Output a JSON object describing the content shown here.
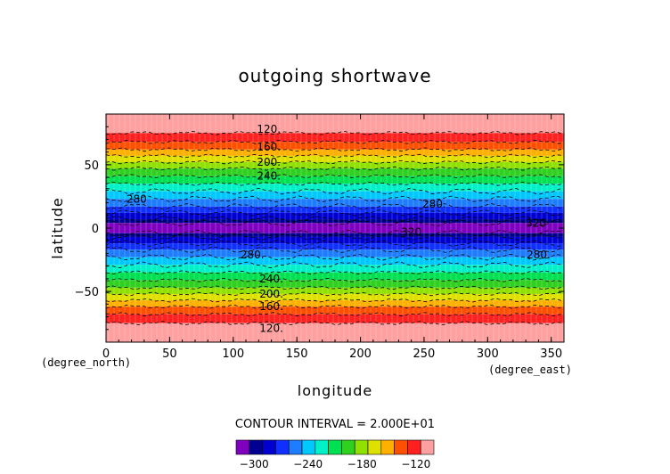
{
  "chart_data": {
    "type": "heatmap",
    "title": "outgoing shortwave",
    "xlabel": "longitude",
    "ylabel": "latitude",
    "x_unit_label": "(degree_east)",
    "y_unit_label": "(degree_north)",
    "xlim": [
      0,
      360
    ],
    "ylim": [
      -90,
      90
    ],
    "x_ticks": [
      0,
      50,
      100,
      150,
      200,
      250,
      300,
      350
    ],
    "y_ticks": [
      -50,
      0,
      50
    ],
    "y_tick_labels": [
      "−50",
      "0",
      "50"
    ],
    "contour_interval_text": "CONTOUR INTERVAL = 2.000E+01",
    "colorbar": {
      "colors": [
        "#8000c0",
        "#000090",
        "#0000d0",
        "#1030ff",
        "#1e7cff",
        "#00c8ff",
        "#00f0c8",
        "#00e050",
        "#30d020",
        "#90e000",
        "#e0e000",
        "#ffb000",
        "#ff5000",
        "#ff2020",
        "#ffa0a0"
      ],
      "tick_values": [
        -300,
        -240,
        -180,
        -120
      ],
      "tick_labels": [
        "−300",
        "−240",
        "−180",
        "−120"
      ]
    },
    "bands": [
      {
        "from": 75,
        "to": 90,
        "color": "#ffa0a0"
      },
      {
        "from": 68,
        "to": 75,
        "color": "#ff2020"
      },
      {
        "from": 62,
        "to": 68,
        "color": "#ff5000"
      },
      {
        "from": 57,
        "to": 62,
        "color": "#ffb000"
      },
      {
        "from": 52,
        "to": 57,
        "color": "#e0e000"
      },
      {
        "from": 47,
        "to": 52,
        "color": "#90e000"
      },
      {
        "from": 41,
        "to": 47,
        "color": "#30d020"
      },
      {
        "from": 35,
        "to": 41,
        "color": "#00e050"
      },
      {
        "from": 29,
        "to": 35,
        "color": "#00f0c8"
      },
      {
        "from": 23,
        "to": 29,
        "color": "#00c8ff"
      },
      {
        "from": 17,
        "to": 23,
        "color": "#1e7cff"
      },
      {
        "from": 12,
        "to": 17,
        "color": "#1030ff"
      },
      {
        "from": 7,
        "to": 12,
        "color": "#0000d0"
      },
      {
        "from": 4,
        "to": 7,
        "color": "#000090"
      },
      {
        "from": -4,
        "to": 4,
        "color": "#8000c0"
      },
      {
        "from": -7,
        "to": -4,
        "color": "#000090"
      },
      {
        "from": -12,
        "to": -7,
        "color": "#0000d0"
      },
      {
        "from": -17,
        "to": -12,
        "color": "#1030ff"
      },
      {
        "from": -23,
        "to": -17,
        "color": "#1e7cff"
      },
      {
        "from": -29,
        "to": -23,
        "color": "#00c8ff"
      },
      {
        "from": -35,
        "to": -29,
        "color": "#00f0c8"
      },
      {
        "from": -41,
        "to": -35,
        "color": "#00e050"
      },
      {
        "from": -47,
        "to": -41,
        "color": "#30d020"
      },
      {
        "from": -52,
        "to": -47,
        "color": "#90e000"
      },
      {
        "from": -57,
        "to": -52,
        "color": "#e0e000"
      },
      {
        "from": -62,
        "to": -57,
        "color": "#ffb000"
      },
      {
        "from": -68,
        "to": -62,
        "color": "#ff5000"
      },
      {
        "from": -75,
        "to": -68,
        "color": "#ff2020"
      },
      {
        "from": -90,
        "to": -75,
        "color": "#ffa0a0"
      }
    ],
    "contour_lines_lat": [
      75,
      68,
      62,
      57,
      52,
      47,
      41,
      35,
      29,
      23,
      17,
      12,
      7,
      4,
      -4,
      -7,
      -12,
      -17,
      -23,
      -29,
      -35,
      -41,
      -47,
      -52,
      -57,
      -62,
      -68,
      -75
    ],
    "contour_labels": [
      {
        "text": "120.",
        "lon": 128,
        "lat": 78
      },
      {
        "text": "160.",
        "lon": 128,
        "lat": 64
      },
      {
        "text": "200.",
        "lon": 128,
        "lat": 52
      },
      {
        "text": "240.",
        "lon": 128,
        "lat": 41
      },
      {
        "text": "280",
        "lon": 24,
        "lat": 23
      },
      {
        "text": "280.",
        "lon": 258,
        "lat": 19
      },
      {
        "text": "320",
        "lon": 240,
        "lat": -3
      },
      {
        "text": "320",
        "lon": 338,
        "lat": 4
      },
      {
        "text": "280.",
        "lon": 115,
        "lat": -21
      },
      {
        "text": "280.",
        "lon": 340,
        "lat": -21
      },
      {
        "text": "240.",
        "lon": 130,
        "lat": -40
      },
      {
        "text": "200.",
        "lon": 130,
        "lat": -52
      },
      {
        "text": "160.",
        "lon": 130,
        "lat": -62
      },
      {
        "text": "120.",
        "lon": 130,
        "lat": -79
      }
    ]
  }
}
